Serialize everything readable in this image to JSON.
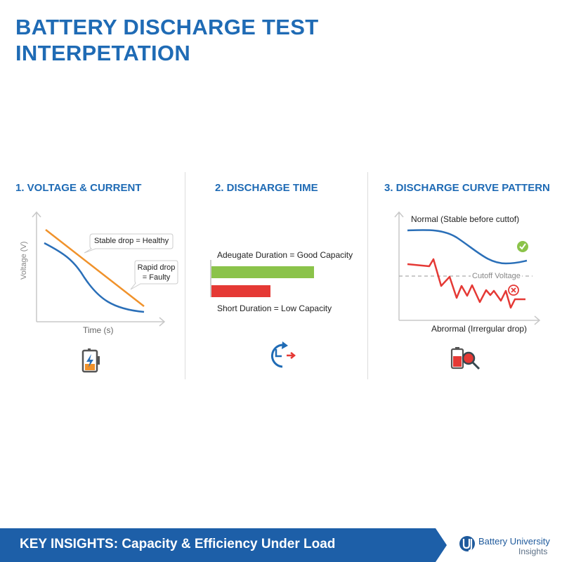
{
  "title": "BATTERY DISCHARGE TEST INTERPETATION",
  "sections": [
    {
      "heading": "1. VOLTAGE & CURRENT",
      "y_axis_label": "Voltage (V)",
      "x_axis_label": "Time (s)",
      "callout_healthy": "Stable drop = Healthy",
      "callout_faulty_line1": "Rapid drop",
      "callout_faulty_line2": "= Faulty",
      "icon": "battery-charging-icon"
    },
    {
      "heading": "2. DISCHARGE TIME",
      "good_label": "Adeugate Duration = Good Capacity",
      "low_label": "Short Duration = Low Capacity",
      "icon": "clock-arrow-icon"
    },
    {
      "heading": "3. DISCHARGE CURVE PATTERN",
      "normal_label": "Normal (Stable before cuttof)",
      "cutoff_label": "Cutoff Voltage",
      "abnormal_label": "Abrormal (Irrergular drop)",
      "icon": "battery-magnifier-icon"
    }
  ],
  "footer": {
    "text": "KEY INSIGHTS: Capacity & Efficiency Under Load",
    "logo_name": "Battery University",
    "logo_sub": "Insights"
  },
  "colors": {
    "accent": "#1f6bb5",
    "orange": "#f0922b",
    "blue_line": "#2a6fb8",
    "green": "#8bc34a",
    "red": "#e53935",
    "footer": "#1d5fa8"
  }
}
